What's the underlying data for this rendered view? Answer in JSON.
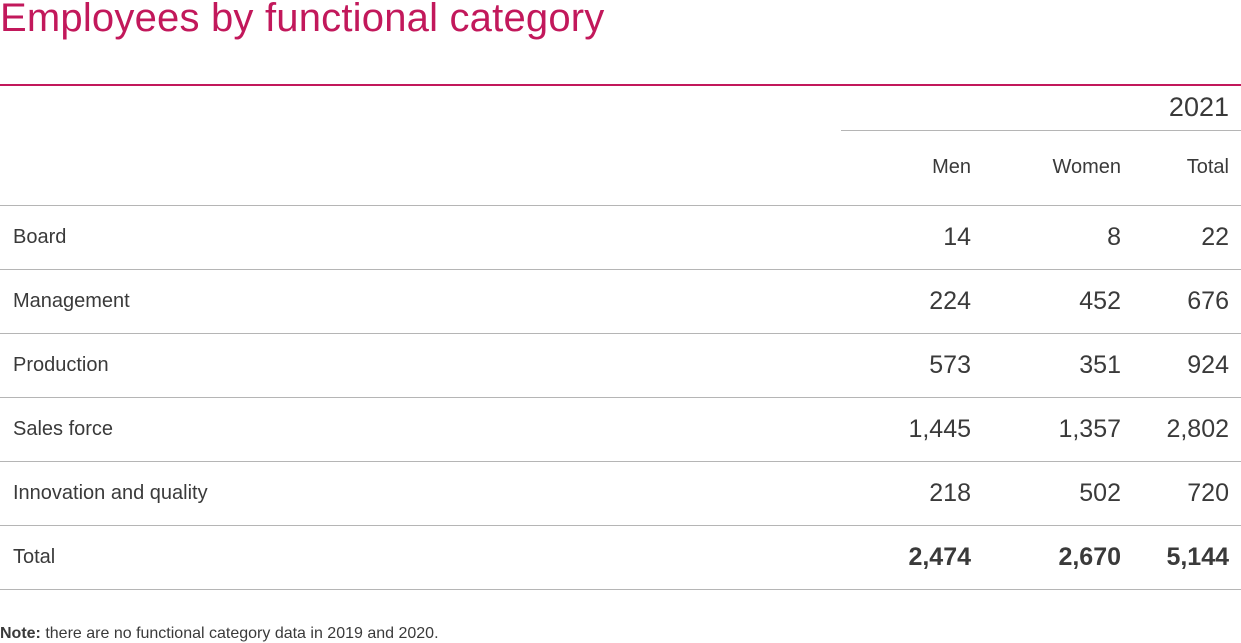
{
  "title": "Employees by functional category",
  "accent_color": "#c2185b",
  "table": {
    "year": "2021",
    "columns": [
      "Men",
      "Women",
      "Total"
    ],
    "rows": [
      {
        "label": "Board",
        "men": "14",
        "women": "8",
        "total": "22"
      },
      {
        "label": "Management",
        "men": "224",
        "women": "452",
        "total": "676"
      },
      {
        "label": "Production",
        "men": "573",
        "women": "351",
        "total": "924"
      },
      {
        "label": "Sales force",
        "men": "1,445",
        "women": "1,357",
        "total": "2,802"
      },
      {
        "label": "Innovation and quality",
        "men": "218",
        "women": "502",
        "total": "720"
      }
    ],
    "total_row": {
      "label": "Total",
      "men": "2,474",
      "women": "2,670",
      "total": "5,144"
    }
  },
  "note": {
    "label": "Note:",
    "text": " there are no functional category data in 2019 and 2020."
  }
}
